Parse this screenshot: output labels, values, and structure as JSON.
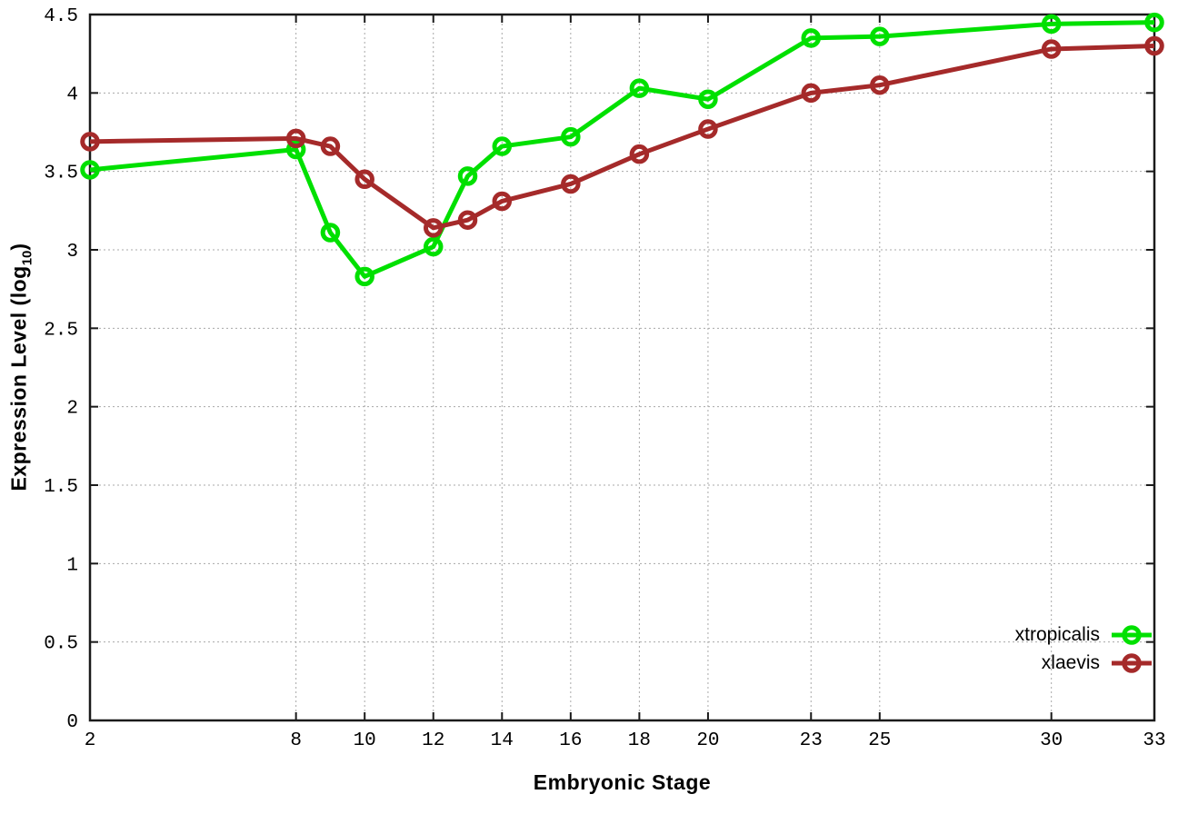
{
  "chart_data": {
    "type": "line",
    "title": "",
    "xlabel": "Embryonic Stage",
    "ylabel": "Expression Level (log10)",
    "ylabel_parts": {
      "main": "Expression Level (log",
      "sub": "10",
      "end": ")"
    },
    "x": [
      2,
      8,
      9,
      10,
      12,
      13,
      14,
      16,
      18,
      20,
      23,
      25,
      30,
      33
    ],
    "series": [
      {
        "name": "xtropicalis",
        "color": "#00e000",
        "marker": "open-circle",
        "values": [
          3.51,
          3.64,
          3.11,
          2.83,
          3.02,
          3.47,
          3.66,
          3.72,
          4.03,
          3.96,
          4.35,
          4.36,
          4.44,
          4.45
        ]
      },
      {
        "name": "xlaevis",
        "color": "#a52a2a",
        "marker": "open-circle",
        "values": [
          3.69,
          3.71,
          3.66,
          3.45,
          3.14,
          3.19,
          3.31,
          3.42,
          3.61,
          3.77,
          4.0,
          4.05,
          4.28,
          4.3
        ]
      }
    ],
    "xlim": [
      2,
      33
    ],
    "ylim": [
      0,
      4.5
    ],
    "xticks": [
      2,
      8,
      10,
      12,
      14,
      16,
      18,
      20,
      23,
      25,
      30,
      33
    ],
    "yticks": [
      0,
      0.5,
      1,
      1.5,
      2,
      2.5,
      3,
      3.5,
      4,
      4.5
    ],
    "grid": true,
    "grid_color": "#a8a8a8",
    "border_color": "#1a1a1a",
    "legend_position": "inside-bottom-right"
  }
}
